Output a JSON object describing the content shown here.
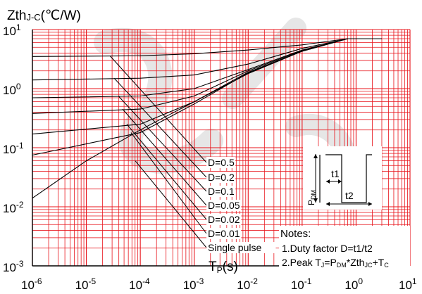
{
  "chart_data": {
    "type": "line",
    "ylabel_main": "Zth",
    "ylabel_sub": "J-C",
    "ylabel_unit": "(℃/W)",
    "xlabel_main": "T",
    "xlabel_sub": "P",
    "xlabel_unit": "(s)",
    "x_scale": "log",
    "y_scale": "log",
    "xlim": [
      1e-06,
      10
    ],
    "ylim": [
      0.001,
      10
    ],
    "grid": true,
    "x_ticks": [
      {
        "base": "10",
        "exp": "-6"
      },
      {
        "base": "10",
        "exp": "-5"
      },
      {
        "base": "10",
        "exp": "-4"
      },
      {
        "base": "10",
        "exp": "-3"
      },
      {
        "base": "10",
        "exp": "-2"
      },
      {
        "base": "10",
        "exp": "-1"
      },
      {
        "base": "10",
        "exp": "0"
      },
      {
        "base": "10",
        "exp": "1"
      }
    ],
    "y_ticks": [
      {
        "base": "10",
        "exp": "1"
      },
      {
        "base": "10",
        "exp": "0"
      },
      {
        "base": "10",
        "exp": "-1"
      },
      {
        "base": "10",
        "exp": "-2"
      },
      {
        "base": "10",
        "exp": "-3"
      }
    ],
    "series": [
      {
        "name": "D=0.5",
        "x": [
          1e-06,
          0.0001,
          0.001,
          0.01,
          0.1,
          0.7,
          3
        ],
        "y": [
          3.5,
          3.6,
          3.9,
          4.5,
          5.5,
          7.0,
          7.0
        ]
      },
      {
        "name": "D=0.2",
        "x": [
          1e-06,
          0.0001,
          0.001,
          0.01,
          0.1,
          0.7,
          3
        ],
        "y": [
          1.4,
          1.5,
          1.7,
          2.6,
          4.8,
          7.0,
          7.0
        ]
      },
      {
        "name": "D=0.1",
        "x": [
          1e-06,
          0.0001,
          0.001,
          0.01,
          0.1,
          0.7,
          3
        ],
        "y": [
          0.7,
          0.75,
          1.0,
          2.1,
          4.5,
          7.0,
          7.0
        ]
      },
      {
        "name": "D=0.05",
        "x": [
          1e-06,
          0.0001,
          0.001,
          0.01,
          0.1,
          0.7,
          3
        ],
        "y": [
          0.38,
          0.45,
          0.75,
          2.0,
          4.4,
          7.0,
          7.0
        ]
      },
      {
        "name": "D=0.02",
        "x": [
          1e-06,
          0.0001,
          0.001,
          0.01,
          0.1,
          0.7,
          3
        ],
        "y": [
          0.17,
          0.25,
          0.6,
          1.9,
          4.3,
          7.0,
          7.0
        ]
      },
      {
        "name": "D=0.01",
        "x": [
          1e-06,
          0.0001,
          0.001,
          0.01,
          0.1,
          0.7,
          3
        ],
        "y": [
          0.075,
          0.18,
          0.55,
          1.85,
          4.3,
          7.0,
          7.0
        ]
      },
      {
        "name": "Single pulse",
        "x": [
          1e-06,
          1e-05,
          0.0001,
          0.001,
          0.01,
          0.1,
          0.7,
          3
        ],
        "y": [
          0.014,
          0.06,
          0.2,
          0.6,
          1.8,
          4.3,
          7.0,
          7.0
        ]
      }
    ],
    "d_labels": [
      "D=0.5",
      "D=0.2",
      "D=0.1",
      "D=0.05",
      "D=0.02",
      "D=0.01",
      "Single pulse"
    ],
    "notes": {
      "title": "Notes:",
      "line1": "1.Duty factor D=t1/t2",
      "line2_pre": "2.Peak T",
      "line2_sub1": "J",
      "line2_mid1": "=P",
      "line2_sub2": "DM",
      "line2_mid2": "*Zth",
      "line2_sub3": "JC",
      "line2_mid3": "+T",
      "line2_sub4": "C"
    },
    "inset": {
      "pdm": "P",
      "pdm_sub": "DM",
      "t1": "t1",
      "t2": "t2"
    },
    "colors": {
      "grid": "#e8141b",
      "curve": "#000000",
      "watermark": "#e6e6e6"
    }
  }
}
